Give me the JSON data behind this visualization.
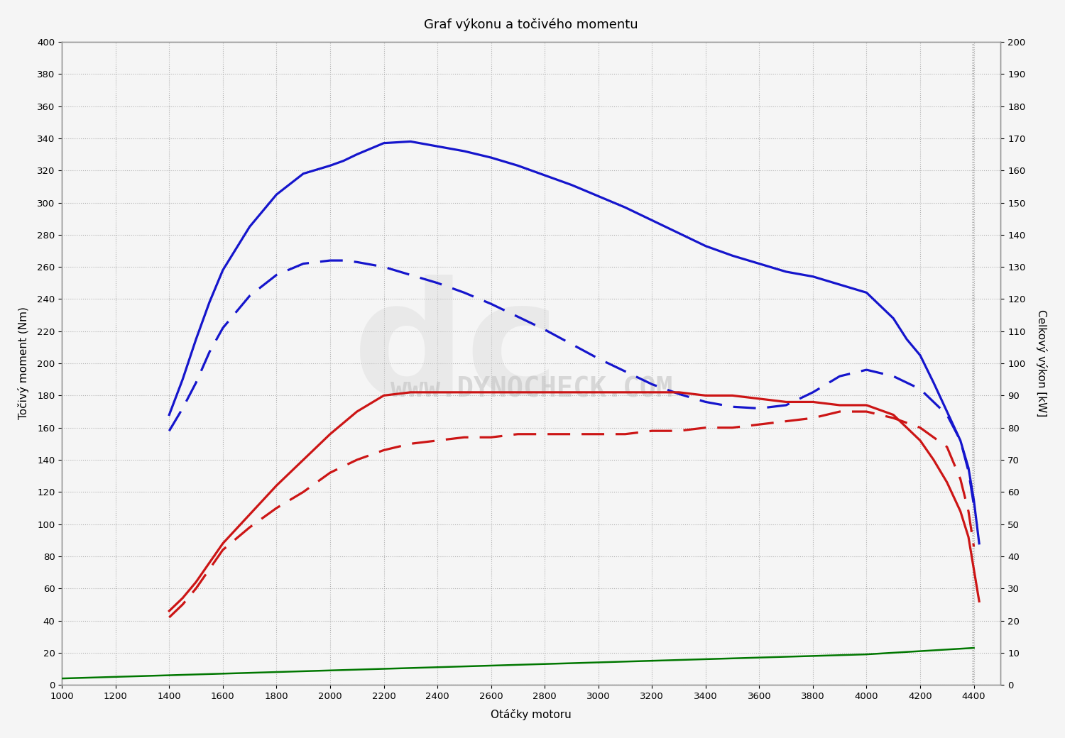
{
  "title": "Graf výkonu a točivého momentu",
  "xlabel": "Otáčky motoru",
  "ylabel_left": "Točivý moment (Nm)",
  "ylabel_right": "Celkový výkon [kW]",
  "xlim": [
    1000,
    4500
  ],
  "ylim_left": [
    0,
    400
  ],
  "ylim_right": [
    0,
    200
  ],
  "xticks": [
    1000,
    1200,
    1400,
    1600,
    1800,
    2000,
    2200,
    2400,
    2600,
    2800,
    3000,
    3200,
    3400,
    3600,
    3800,
    4000,
    4200,
    4400
  ],
  "yticks_left": [
    0,
    20,
    40,
    60,
    80,
    100,
    120,
    140,
    160,
    180,
    200,
    220,
    240,
    260,
    280,
    300,
    320,
    340,
    360,
    380,
    400
  ],
  "yticks_right": [
    0,
    10,
    20,
    30,
    40,
    50,
    60,
    70,
    80,
    90,
    100,
    110,
    120,
    130,
    140,
    150,
    160,
    170,
    180,
    190,
    200
  ],
  "blue_solid_rpm": [
    1400,
    1450,
    1500,
    1550,
    1600,
    1700,
    1800,
    1900,
    2000,
    2050,
    2100,
    2200,
    2300,
    2400,
    2500,
    2600,
    2700,
    2800,
    2900,
    3000,
    3100,
    3200,
    3300,
    3400,
    3500,
    3600,
    3700,
    3800,
    3900,
    4000,
    4100,
    4150,
    4200,
    4250,
    4300,
    4350,
    4380,
    4400,
    4420
  ],
  "blue_solid_val": [
    168,
    190,
    215,
    238,
    258,
    285,
    305,
    318,
    323,
    326,
    330,
    337,
    338,
    335,
    332,
    328,
    323,
    317,
    311,
    304,
    297,
    289,
    281,
    273,
    267,
    262,
    257,
    254,
    249,
    244,
    228,
    215,
    205,
    188,
    170,
    152,
    135,
    115,
    88
  ],
  "blue_dashed_rpm": [
    1400,
    1450,
    1500,
    1550,
    1600,
    1700,
    1800,
    1900,
    2000,
    2050,
    2100,
    2200,
    2300,
    2400,
    2500,
    2600,
    2700,
    2800,
    2900,
    3000,
    3100,
    3200,
    3300,
    3400,
    3500,
    3600,
    3700,
    3800,
    3900,
    4000,
    4100,
    4200,
    4300,
    4350,
    4380,
    4400
  ],
  "blue_dashed_val": [
    158,
    172,
    188,
    207,
    222,
    242,
    255,
    262,
    264,
    264,
    263,
    260,
    255,
    250,
    244,
    237,
    229,
    221,
    212,
    203,
    195,
    187,
    181,
    176,
    173,
    172,
    174,
    182,
    192,
    196,
    192,
    184,
    168,
    152,
    133,
    112
  ],
  "red_solid_rpm": [
    1400,
    1450,
    1500,
    1550,
    1600,
    1700,
    1800,
    1900,
    2000,
    2100,
    2200,
    2300,
    2400,
    2500,
    2600,
    2700,
    2800,
    2900,
    3000,
    3100,
    3200,
    3300,
    3400,
    3500,
    3600,
    3700,
    3800,
    3900,
    4000,
    4100,
    4150,
    4200,
    4250,
    4300,
    4350,
    4380,
    4400,
    4420
  ],
  "red_solid_val": [
    23,
    27,
    32,
    38,
    44,
    53,
    62,
    70,
    78,
    85,
    90,
    91,
    91,
    91,
    91,
    91,
    91,
    91,
    91,
    91,
    91,
    91,
    90,
    90,
    89,
    88,
    88,
    87,
    87,
    84,
    80,
    76,
    70,
    63,
    54,
    46,
    36,
    26
  ],
  "red_dashed_rpm": [
    1400,
    1450,
    1500,
    1550,
    1600,
    1700,
    1800,
    1900,
    2000,
    2100,
    2200,
    2300,
    2400,
    2500,
    2600,
    2700,
    2800,
    2900,
    3000,
    3100,
    3200,
    3300,
    3400,
    3500,
    3600,
    3700,
    3800,
    3900,
    4000,
    4100,
    4200,
    4300,
    4350,
    4380,
    4400
  ],
  "red_dashed_val": [
    21,
    25,
    30,
    36,
    42,
    49,
    55,
    60,
    66,
    70,
    73,
    75,
    76,
    77,
    77,
    78,
    78,
    78,
    78,
    78,
    79,
    79,
    80,
    80,
    81,
    82,
    83,
    85,
    85,
    83,
    80,
    74,
    64,
    54,
    43
  ],
  "green_rpm": [
    1000,
    1200,
    1400,
    1600,
    1800,
    2000,
    2200,
    2400,
    2600,
    2800,
    3000,
    3200,
    3400,
    3600,
    3800,
    4000,
    4200,
    4400
  ],
  "green_val": [
    2.0,
    2.5,
    3.0,
    3.5,
    4.0,
    4.5,
    5.0,
    5.5,
    6.0,
    6.5,
    7.0,
    7.5,
    8.0,
    8.5,
    9.0,
    9.5,
    10.5,
    11.5
  ],
  "blue_color": "#1515cc",
  "red_color": "#cc1515",
  "green_color": "#007700",
  "bg_color": "#f5f5f5",
  "grid_color": "#aaaaaa",
  "watermark": "www.DYNOCHECK.COM"
}
